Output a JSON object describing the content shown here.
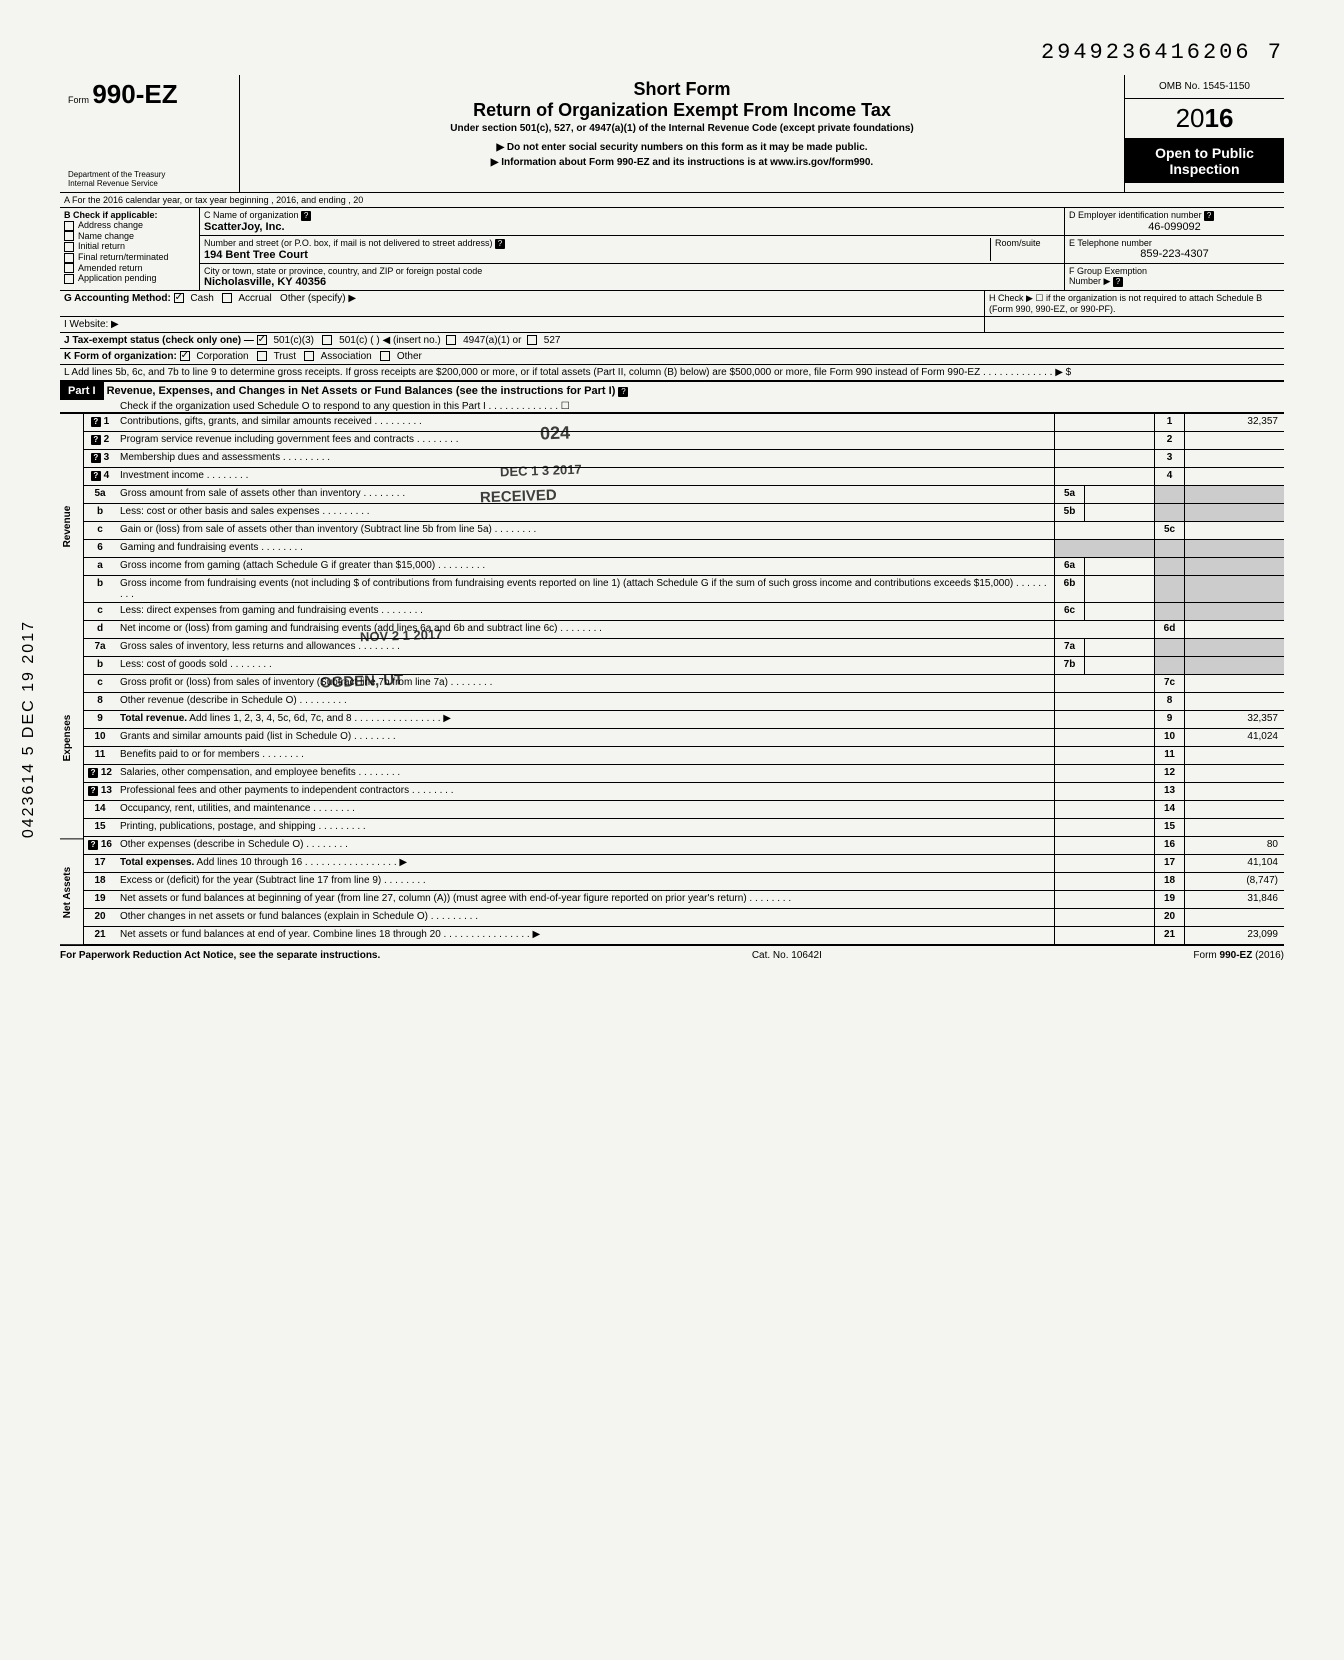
{
  "top_number": "2949236416206 7",
  "form": {
    "prefix": "Form",
    "number": "990-EZ"
  },
  "dept": "Department of the Treasury\nInternal Revenue Service",
  "titles": {
    "short": "Short Form",
    "main": "Return of Organization Exempt From Income Tax",
    "sub": "Under section 501(c), 527, or 4947(a)(1) of the Internal Revenue Code (except private foundations)",
    "warn": "▶ Do not enter social security numbers on this form as it may be made public.",
    "info": "▶ Information about Form 990-EZ and its instructions is at www.irs.gov/form990."
  },
  "right_header": {
    "omb": "OMB No. 1545-1150",
    "year_prefix": "20",
    "year_bold": "16",
    "open": "Open to Public Inspection"
  },
  "line_a": "A For the 2016 calendar year, or tax year beginning                                              , 2016, and ending                                    , 20",
  "box_b": {
    "title": "B Check if applicable:",
    "items": [
      "Address change",
      "Name change",
      "Initial return",
      "Final return/terminated",
      "Amended return",
      "Application pending"
    ]
  },
  "box_c": {
    "label_c": "C Name of organization",
    "name": "ScatterJoy, Inc.",
    "street_label": "Number and street (or P.O. box, if mail is not delivered to street address)",
    "room_label": "Room/suite",
    "street": "194 Bent Tree Court",
    "city_label": "City or town, state or province, country, and ZIP or foreign postal code",
    "city": "Nicholasville, KY  40356"
  },
  "box_d": {
    "label": "D Employer identification number",
    "value": "46-099092"
  },
  "box_e": {
    "label": "E Telephone number",
    "value": "859-223-4307"
  },
  "box_f": {
    "label": "F Group Exemption",
    "number_label": "Number ▶"
  },
  "line_g": {
    "label": "G Accounting Method:",
    "cash": "Cash",
    "accrual": "Accrual",
    "other": "Other (specify) ▶"
  },
  "line_h": "H Check ▶ ☐ if the organization is not required to attach Schedule B (Form 990, 990-EZ, or 990-PF).",
  "line_i": "I  Website: ▶",
  "line_j": {
    "label": "J Tax-exempt status (check only one) —",
    "o1": "501(c)(3)",
    "o2": "501(c) (        ) ◀ (insert no.)",
    "o3": "4947(a)(1) or",
    "o4": "527"
  },
  "line_k": {
    "label": "K Form of organization:",
    "o1": "Corporation",
    "o2": "Trust",
    "o3": "Association",
    "o4": "Other"
  },
  "line_l": "L Add lines 5b, 6c, and 7b to line 9 to determine gross receipts. If gross receipts are $200,000 or more, or if total assets (Part II, column (B) below) are $500,000 or more, file Form 990 instead of Form 990-EZ . . . . . . . . . . . . . ▶  $",
  "part1": {
    "label": "Part I",
    "title": "Revenue, Expenses, and Changes in Net Assets or Fund Balances (see the instructions for Part I)",
    "check": "Check if the organization used Schedule O to respond to any question in this Part I . . . . . . . . . . . . . ☐"
  },
  "side_labels": {
    "revenue": "Revenue",
    "expenses": "Expenses",
    "netassets": "Net Assets"
  },
  "rows": [
    {
      "n": "1",
      "d": "Contributions, gifts, grants, and similar amounts received .",
      "rn": "1",
      "rv": "32,357",
      "q": true
    },
    {
      "n": "2",
      "d": "Program service revenue including government fees and contracts",
      "rn": "2",
      "rv": "",
      "q": true
    },
    {
      "n": "3",
      "d": "Membership dues and assessments .",
      "rn": "3",
      "rv": "",
      "q": true
    },
    {
      "n": "4",
      "d": "Investment income",
      "rn": "4",
      "rv": "",
      "q": true
    },
    {
      "n": "5a",
      "d": "Gross amount from sale of assets other than inventory",
      "sn": "5a",
      "sv": ""
    },
    {
      "n": "b",
      "d": "Less: cost or other basis and sales expenses .",
      "sn": "5b",
      "sv": ""
    },
    {
      "n": "c",
      "d": "Gain or (loss) from sale of assets other than inventory (Subtract line 5b from line 5a)",
      "rn": "5c",
      "rv": ""
    },
    {
      "n": "6",
      "d": "Gaming and fundraising events"
    },
    {
      "n": "a",
      "d": "Gross income from gaming (attach Schedule G if greater than $15,000) .",
      "sn": "6a",
      "sv": ""
    },
    {
      "n": "b",
      "d": "Gross income from fundraising events (not including  $                       of contributions from fundraising events reported on line 1) (attach Schedule G if the sum of such gross income and contributions exceeds $15,000) .",
      "sn": "6b",
      "sv": ""
    },
    {
      "n": "c",
      "d": "Less: direct expenses from gaming and fundraising events",
      "sn": "6c",
      "sv": ""
    },
    {
      "n": "d",
      "d": "Net income or (loss) from gaming and fundraising events (add lines 6a and 6b and subtract line 6c)",
      "rn": "6d",
      "rv": ""
    },
    {
      "n": "7a",
      "d": "Gross sales of inventory, less returns and allowances",
      "sn": "7a",
      "sv": ""
    },
    {
      "n": "b",
      "d": "Less: cost of goods sold",
      "sn": "7b",
      "sv": ""
    },
    {
      "n": "c",
      "d": "Gross profit or (loss) from sales of inventory (Subtract line 7b from line 7a)",
      "rn": "7c",
      "rv": ""
    },
    {
      "n": "8",
      "d": "Other revenue (describe in Schedule O) .",
      "rn": "8",
      "rv": ""
    },
    {
      "n": "9",
      "d": "Total revenue. Add lines 1, 2, 3, 4, 5c, 6d, 7c, and 8",
      "rn": "9",
      "rv": "32,357",
      "bold": true,
      "arrow": true
    },
    {
      "n": "10",
      "d": "Grants and similar amounts paid (list in Schedule O)",
      "rn": "10",
      "rv": "41,024"
    },
    {
      "n": "11",
      "d": "Benefits paid to or for members",
      "rn": "11",
      "rv": ""
    },
    {
      "n": "12",
      "d": "Salaries, other compensation, and employee benefits",
      "rn": "12",
      "rv": "",
      "q": true
    },
    {
      "n": "13",
      "d": "Professional fees and other payments to independent contractors",
      "rn": "13",
      "rv": "",
      "q": true
    },
    {
      "n": "14",
      "d": "Occupancy, rent, utilities, and maintenance",
      "rn": "14",
      "rv": ""
    },
    {
      "n": "15",
      "d": "Printing, publications, postage, and shipping .",
      "rn": "15",
      "rv": ""
    },
    {
      "n": "16",
      "d": "Other expenses (describe in Schedule O)",
      "rn": "16",
      "rv": "80",
      "q": true
    },
    {
      "n": "17",
      "d": "Total expenses. Add lines 10 through 16 .",
      "rn": "17",
      "rv": "41,104",
      "bold": true,
      "arrow": true
    },
    {
      "n": "18",
      "d": "Excess or (deficit) for the year (Subtract line 17 from line 9)",
      "rn": "18",
      "rv": "(8,747)"
    },
    {
      "n": "19",
      "d": "Net assets or fund balances at beginning of year (from line 27, column (A)) (must agree with end-of-year figure reported on prior year's return)",
      "rn": "19",
      "rv": "31,846"
    },
    {
      "n": "20",
      "d": "Other changes in net assets or fund balances (explain in Schedule O) .",
      "rn": "20",
      "rv": ""
    },
    {
      "n": "21",
      "d": "Net assets or fund balances at end of year. Combine lines 18 through 20",
      "rn": "21",
      "rv": "23,099",
      "arrow": true
    }
  ],
  "stamps": {
    "received": "RECEIVED",
    "date1": "DEC 1 3 2017",
    "ogden": "OGDEN, UT",
    "date2": "NOV 2 1 2017",
    "o24": "024"
  },
  "footer": {
    "left": "For Paperwork Reduction Act Notice, see the separate instructions.",
    "mid": "Cat. No. 10642I",
    "right": "Form 990-EZ (2016)"
  },
  "left_margin": "0423614 5 DEC 19 2017"
}
